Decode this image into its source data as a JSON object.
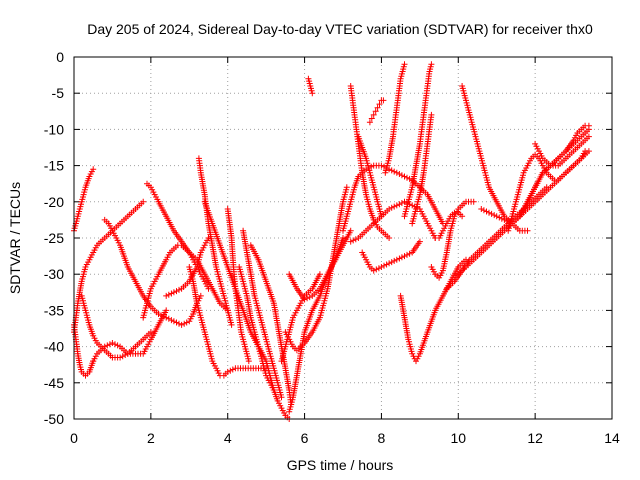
{
  "chart_data": {
    "type": "scatter",
    "title": "Day 205 of 2024, Sidereal Day-to-day VTEC variation (SDTVAR) for receiver thx0",
    "xlabel": "GPS time / hours",
    "ylabel": "SDTVAR / TECUs",
    "xlim": [
      0,
      14
    ],
    "ylim": [
      -50,
      0
    ],
    "xticks": [
      "0",
      "2",
      "4",
      "6",
      "8",
      "10",
      "12",
      "14"
    ],
    "yticks": [
      "0",
      "-5",
      "-10",
      "-15",
      "-20",
      "-25",
      "-30",
      "-35",
      "-40",
      "-45",
      "-50"
    ],
    "grid": true,
    "marker": "+",
    "color": "#ff0000",
    "series": [
      {
        "x": [
          0.0,
          0.1,
          0.2,
          0.3,
          0.4,
          0.5
        ],
        "y": [
          -24,
          -22,
          -20,
          -18,
          -16.5,
          -15.5
        ]
      },
      {
        "x": [
          0.0,
          0.05,
          0.1,
          0.15,
          0.2,
          0.3,
          0.4,
          0.5
        ],
        "y": [
          -37,
          -39,
          -41,
          -42.5,
          -43.5,
          -44,
          -43.5,
          -42
        ]
      },
      {
        "x": [
          0.5,
          0.6,
          0.7,
          0.8,
          1.0,
          1.2,
          1.4,
          1.6,
          1.8,
          1.9,
          2.0,
          2.2,
          2.4
        ],
        "y": [
          -42,
          -41,
          -40.5,
          -40,
          -39.5,
          -40,
          -41,
          -41,
          -41,
          -40,
          -39,
          -37,
          -35
        ]
      },
      {
        "x": [
          0.0,
          0.05,
          0.1,
          0.2,
          0.3,
          0.4,
          0.5,
          0.6,
          0.7,
          0.8,
          1.0,
          1.2,
          1.4,
          1.6,
          1.8
        ],
        "y": [
          -38,
          -36,
          -34,
          -31,
          -29,
          -28,
          -27,
          -26,
          -25.5,
          -25,
          -24,
          -23,
          -22,
          -21,
          -20
        ]
      },
      {
        "x": [
          0.2,
          0.3,
          0.4,
          0.5,
          0.6,
          0.8,
          1.0,
          1.2,
          1.4,
          1.6,
          1.8,
          2.0
        ],
        "y": [
          -33,
          -35,
          -37,
          -38.5,
          -39.5,
          -40.5,
          -41.5,
          -41.5,
          -41,
          -40,
          -39,
          -38
        ]
      },
      {
        "x": [
          0.8,
          0.9,
          1.0,
          1.1,
          1.2,
          1.4,
          1.6,
          1.8,
          2.0,
          2.2,
          2.4,
          2.6,
          2.8,
          3.0,
          3.1,
          3.2,
          3.3
        ],
        "y": [
          -22.5,
          -23,
          -24,
          -25,
          -26,
          -29,
          -31,
          -33,
          -34.5,
          -35.5,
          -36,
          -36.5,
          -37,
          -36.5,
          -35.5,
          -34,
          -33
        ]
      },
      {
        "x": [
          1.8,
          1.9,
          2.0,
          2.1,
          2.2,
          2.4,
          2.5,
          2.6,
          2.7,
          2.8,
          2.9,
          3.0,
          3.1,
          3.2,
          3.3,
          3.4,
          3.5
        ],
        "y": [
          -36,
          -34,
          -32,
          -31,
          -30,
          -28,
          -27,
          -26.5,
          -26,
          -26,
          -26.5,
          -27,
          -28,
          -29,
          -30,
          -31,
          -32
        ]
      },
      {
        "x": [
          1.9,
          2.0,
          2.1,
          2.2,
          2.4,
          2.6,
          2.8,
          3.0,
          3.2,
          3.4,
          3.6,
          3.8,
          4.0
        ],
        "y": [
          -17.5,
          -18,
          -19,
          -20,
          -22,
          -24,
          -25.5,
          -27,
          -28,
          -30,
          -32,
          -34,
          -35
        ]
      },
      {
        "x": [
          2.4,
          2.6,
          2.8,
          3.0,
          3.2,
          3.3,
          3.4,
          3.5
        ],
        "y": [
          -33,
          -32.5,
          -32,
          -31,
          -29,
          -27,
          -26,
          -25
        ]
      },
      {
        "x": [
          3.25,
          3.3,
          3.4,
          3.5,
          3.6,
          3.7,
          3.8,
          3.9,
          4.0,
          4.1
        ],
        "y": [
          -14,
          -16,
          -19,
          -23,
          -26,
          -29,
          -31,
          -33,
          -35,
          -37
        ]
      },
      {
        "x": [
          3.0,
          3.1,
          3.2,
          3.3,
          3.4,
          3.5,
          3.6,
          3.7,
          3.8,
          3.9,
          4.0,
          4.2,
          4.4,
          4.6,
          4.8,
          5.0
        ],
        "y": [
          -29,
          -31,
          -34,
          -36,
          -38,
          -40,
          -42,
          -43,
          -44,
          -44,
          -43.5,
          -43,
          -43,
          -43,
          -43,
          -43
        ]
      },
      {
        "x": [
          4.0,
          4.1,
          4.15,
          4.2,
          4.25,
          4.3,
          4.35,
          4.4,
          4.45,
          4.5,
          4.55
        ],
        "y": [
          -21,
          -25,
          -29,
          -32,
          -34,
          -36,
          -38,
          -39,
          -40,
          -41,
          -42
        ]
      },
      {
        "x": [
          4.3,
          4.4,
          4.5,
          4.6,
          4.7,
          4.8,
          4.9,
          5.0,
          5.1,
          5.2
        ],
        "y": [
          -29,
          -31,
          -33,
          -36,
          -38,
          -40,
          -42,
          -44,
          -45,
          -46
        ]
      },
      {
        "x": [
          4.4,
          4.5,
          4.6,
          4.7,
          4.8,
          4.9,
          5.0,
          5.1,
          5.2,
          5.3,
          5.4
        ],
        "y": [
          -24,
          -27,
          -30,
          -33,
          -35,
          -37,
          -39,
          -41,
          -43,
          -45,
          -47
        ]
      },
      {
        "x": [
          4.6,
          4.8,
          5.0,
          5.2,
          5.3,
          5.4,
          5.5,
          5.6,
          5.65
        ],
        "y": [
          -26,
          -28,
          -31,
          -34,
          -37,
          -40,
          -43,
          -46,
          -48
        ]
      },
      {
        "x": [
          3.4,
          3.6,
          3.8,
          4.0,
          4.2,
          4.4,
          4.6,
          4.8,
          5.0,
          5.1,
          5.2,
          5.3,
          5.4,
          5.5,
          5.6
        ],
        "y": [
          -20,
          -23,
          -26,
          -29,
          -32,
          -35,
          -38,
          -40,
          -42,
          -44,
          -46,
          -47.5,
          -48.5,
          -49.5,
          -50
        ]
      },
      {
        "x": [
          5.6,
          5.7,
          5.8,
          5.9,
          6.0,
          6.2,
          6.4,
          6.6,
          6.8,
          7.0
        ],
        "y": [
          -49,
          -47,
          -44,
          -41,
          -38,
          -35,
          -33,
          -30,
          -28,
          -25
        ]
      },
      {
        "x": [
          5.5,
          5.6,
          5.7,
          5.8,
          6.0,
          6.2,
          6.4,
          6.5,
          6.6,
          6.7,
          6.8,
          6.9,
          7.0,
          7.1
        ],
        "y": [
          -38,
          -39,
          -40,
          -40.5,
          -39.5,
          -38,
          -36,
          -34,
          -32,
          -29,
          -26,
          -23,
          -20,
          -18
        ]
      },
      {
        "x": [
          5.4,
          5.5,
          5.6,
          5.7,
          5.8,
          5.9,
          6.0,
          6.2,
          6.4
        ],
        "y": [
          -42,
          -40,
          -38,
          -36,
          -35,
          -34,
          -33,
          -32,
          -30
        ]
      },
      {
        "x": [
          5.6,
          5.8,
          6.0,
          6.2,
          6.4,
          6.6,
          6.8,
          7.0,
          7.2
        ],
        "y": [
          -30,
          -32,
          -33.5,
          -33,
          -32,
          -30,
          -28,
          -26,
          -24
        ]
      },
      {
        "x": [
          6.1,
          6.15,
          6.2
        ],
        "y": [
          -3,
          -4,
          -5
        ]
      },
      {
        "x": [
          7.2,
          7.25,
          7.3,
          7.35,
          7.4,
          7.45,
          7.5,
          7.6,
          7.7,
          7.8,
          7.9,
          8.0,
          8.1,
          8.2
        ],
        "y": [
          -4,
          -6,
          -8,
          -10,
          -12,
          -14,
          -16,
          -19,
          -21,
          -22.5,
          -23.5,
          -24,
          -24.5,
          -25
        ]
      },
      {
        "x": [
          7.0,
          7.1,
          7.2,
          7.3,
          7.4,
          7.6,
          7.8,
          8.0,
          8.2,
          8.4,
          8.6,
          8.8,
          9.0,
          9.2,
          9.4,
          9.6
        ],
        "y": [
          -24,
          -22,
          -20,
          -18,
          -16.5,
          -15.5,
          -15,
          -15,
          -15.5,
          -16,
          -16.5,
          -17,
          -18,
          -19,
          -21,
          -23
        ]
      },
      {
        "x": [
          7.4,
          7.5,
          7.6,
          7.7,
          7.8,
          7.9,
          8.0
        ],
        "y": [
          -11,
          -12.5,
          -14,
          -16,
          -18,
          -20,
          -22
        ]
      },
      {
        "x": [
          7.7,
          7.75,
          7.8,
          7.85,
          7.9,
          7.95,
          8.0,
          8.05
        ],
        "y": [
          -9,
          -8.5,
          -8,
          -7.5,
          -7,
          -6.5,
          -6,
          -6
        ]
      },
      {
        "x": [
          7.2,
          7.4,
          7.6,
          7.8,
          8.0,
          8.2,
          8.4,
          8.6,
          8.8,
          9.0,
          9.1,
          9.2,
          9.3,
          9.4
        ],
        "y": [
          -25.5,
          -25,
          -24,
          -23,
          -22,
          -21,
          -20.5,
          -20,
          -20.5,
          -21,
          -22,
          -23,
          -24,
          -25
        ]
      },
      {
        "x": [
          7.5,
          7.6,
          7.7,
          7.8,
          8.0,
          8.2,
          8.4,
          8.6,
          8.8,
          9.0
        ],
        "y": [
          -27,
          -28,
          -29,
          -29.5,
          -29,
          -28.5,
          -28,
          -27.5,
          -27,
          -25.5
        ]
      },
      {
        "x": [
          8.1,
          8.2,
          8.3,
          8.35,
          8.4,
          8.45,
          8.5,
          8.55,
          8.6
        ],
        "y": [
          -16,
          -14,
          -11,
          -9,
          -7,
          -5,
          -3,
          -2,
          -1
        ]
      },
      {
        "x": [
          8.6,
          8.7,
          8.8,
          8.9,
          9.0,
          9.05,
          9.1,
          9.15,
          9.2,
          9.25,
          9.3
        ],
        "y": [
          -22,
          -20,
          -18,
          -15,
          -12,
          -10,
          -8,
          -6,
          -4,
          -2,
          -1
        ]
      },
      {
        "x": [
          8.8,
          8.9,
          9.0,
          9.1,
          9.15,
          9.2,
          9.25,
          9.3
        ],
        "y": [
          -23,
          -21,
          -19,
          -16,
          -14,
          -12,
          -10,
          -8
        ]
      },
      {
        "x": [
          8.5,
          8.6,
          8.7,
          8.8,
          8.9,
          9.0,
          9.2,
          9.4,
          9.6,
          9.8,
          10.0,
          10.2
        ],
        "y": [
          -33,
          -36,
          -39,
          -41,
          -42,
          -41,
          -38,
          -35,
          -33,
          -31,
          -29,
          -28
        ]
      },
      {
        "x": [
          9.3,
          9.4,
          9.5,
          9.6,
          9.7,
          9.8,
          9.9,
          10.0,
          10.2,
          10.4
        ],
        "y": [
          -29,
          -30,
          -30.5,
          -29.5,
          -27,
          -24,
          -22,
          -21,
          -20,
          -20
        ]
      },
      {
        "x": [
          9.4,
          9.5,
          9.6,
          9.7,
          9.8,
          9.9,
          10.0,
          10.1
        ],
        "y": [
          -25,
          -25,
          -24,
          -23,
          -22,
          -21.5,
          -21.5,
          -22
        ]
      },
      {
        "x": [
          10.1,
          10.15,
          10.2,
          10.3,
          10.4,
          10.5,
          10.6,
          10.7,
          10.8,
          11.0,
          11.2,
          11.4,
          11.6,
          11.8
        ],
        "y": [
          -4,
          -5,
          -6,
          -8,
          -10,
          -12,
          -14,
          -16,
          -18,
          -20,
          -22,
          -23,
          -24,
          -24
        ]
      },
      {
        "x": [
          9.7,
          9.9,
          10.1,
          10.3,
          10.5,
          10.7,
          10.9,
          11.1,
          11.3,
          11.5,
          11.7,
          11.9,
          12.1,
          12.3
        ],
        "y": [
          -32,
          -31,
          -29.5,
          -28,
          -27,
          -26,
          -25,
          -24,
          -23,
          -22,
          -21,
          -20,
          -19,
          -18
        ]
      },
      {
        "x": [
          10.0,
          10.2,
          10.4,
          10.6,
          10.8,
          11.0,
          11.2,
          11.4,
          11.6,
          11.8,
          12.0,
          12.2,
          12.4,
          12.6,
          12.8,
          13.0,
          13.2,
          13.3
        ],
        "y": [
          -30,
          -29,
          -28,
          -27,
          -26,
          -25,
          -24,
          -23,
          -22,
          -21,
          -20,
          -19,
          -18,
          -17,
          -16,
          -15,
          -14,
          -13
        ]
      },
      {
        "x": [
          10.6,
          10.8,
          11.0,
          11.2,
          11.4,
          11.6,
          11.8,
          12.0,
          12.2,
          12.4,
          12.6,
          12.8,
          13.0,
          13.2,
          13.4
        ],
        "y": [
          -21,
          -21.5,
          -22,
          -22.5,
          -23,
          -22,
          -20,
          -18,
          -16,
          -15,
          -14,
          -13,
          -12,
          -11,
          -10
        ]
      },
      {
        "x": [
          11.3,
          11.4,
          11.5,
          11.6,
          11.7,
          11.8,
          11.9,
          12.0,
          12.1,
          12.2,
          12.3,
          12.4,
          12.5,
          12.6,
          12.8,
          13.0,
          13.2,
          13.4
        ],
        "y": [
          -24,
          -22,
          -20,
          -18,
          -16,
          -15,
          -14,
          -13.5,
          -14,
          -15,
          -16,
          -16.5,
          -17,
          -17,
          -16,
          -15,
          -14,
          -13
        ]
      },
      {
        "x": [
          11.6,
          11.8,
          12.0,
          12.2,
          12.4,
          12.6,
          12.8,
          13.0,
          13.1,
          13.2,
          13.3,
          13.4
        ],
        "y": [
          -22,
          -20,
          -18,
          -16,
          -15,
          -14,
          -13,
          -11.5,
          -10.5,
          -10,
          -9.5,
          -9.5
        ]
      },
      {
        "x": [
          12.0,
          12.1,
          12.2,
          12.4,
          12.6,
          12.8,
          13.0,
          13.2,
          13.4
        ],
        "y": [
          -12,
          -13,
          -14,
          -15,
          -15,
          -14,
          -13,
          -12,
          -11
        ]
      }
    ]
  }
}
